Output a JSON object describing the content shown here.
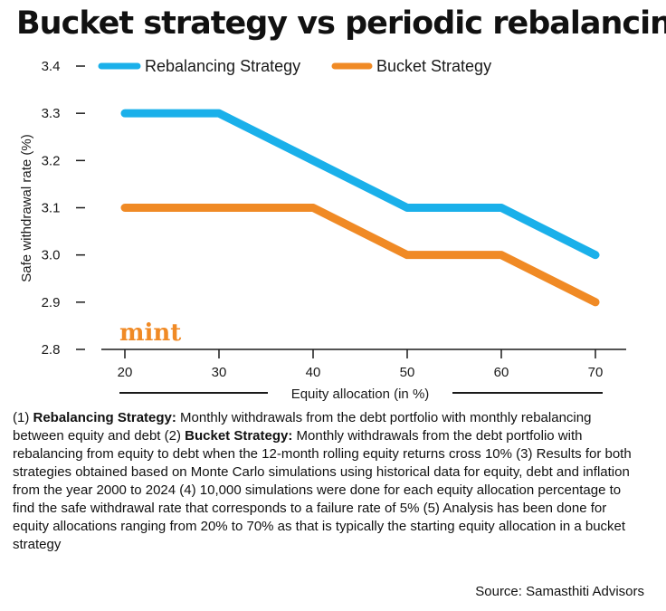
{
  "title": "Bucket strategy vs periodic rebalancing",
  "logo": "mint",
  "chart_data": {
    "type": "line",
    "title": "Bucket strategy vs periodic rebalancing",
    "xlabel": "Equity allocation (in %)",
    "ylabel": "Safe withdrawal rate (%)",
    "x": [
      20,
      30,
      40,
      50,
      60,
      70
    ],
    "ylim": [
      2.8,
      3.4
    ],
    "yticks": [
      "2.8",
      "2.9",
      "3.0",
      "3.1",
      "3.2",
      "3.3",
      "3.4"
    ],
    "xticks": [
      "20",
      "30",
      "40",
      "50",
      "60",
      "70"
    ],
    "grid": false,
    "legend_placement": "top",
    "series": [
      {
        "name": "Rebalancing Strategy",
        "color": "#1ab0ea",
        "values": [
          3.3,
          3.3,
          3.2,
          3.1,
          3.1,
          3.0
        ]
      },
      {
        "name": "Bucket Strategy",
        "color": "#f08a25",
        "values": [
          3.1,
          3.1,
          3.1,
          3.0,
          3.0,
          2.9
        ]
      }
    ]
  },
  "notes": [
    {
      "t": "(1) ",
      "b": false
    },
    {
      "t": "Rebalancing Strategy:",
      "b": true
    },
    {
      "t": " Monthly withdrawals from the debt portfolio with monthly rebalancing between equity and debt (2) ",
      "b": false
    },
    {
      "t": "Bucket Strategy:",
      "b": true
    },
    {
      "t": " Monthly withdrawals from the debt portfolio with rebalancing from equity to debt when the 12-month rolling equity returns cross 10% (3) Results for both strategies obtained based on Monte Carlo simulations using historical data for equity, debt and inflation from the year 2000 to 2024 (4) 10,000 simulations were done for each equity allocation percentage to find the safe withdrawal rate that corresponds to a failure rate of 5% (5) Analysis has been done for equity allocations ranging from 20% to 70% as that is typically the starting equity allocation in a bucket strategy",
      "b": false
    }
  ],
  "source": "Source: Samasthiti Advisors"
}
